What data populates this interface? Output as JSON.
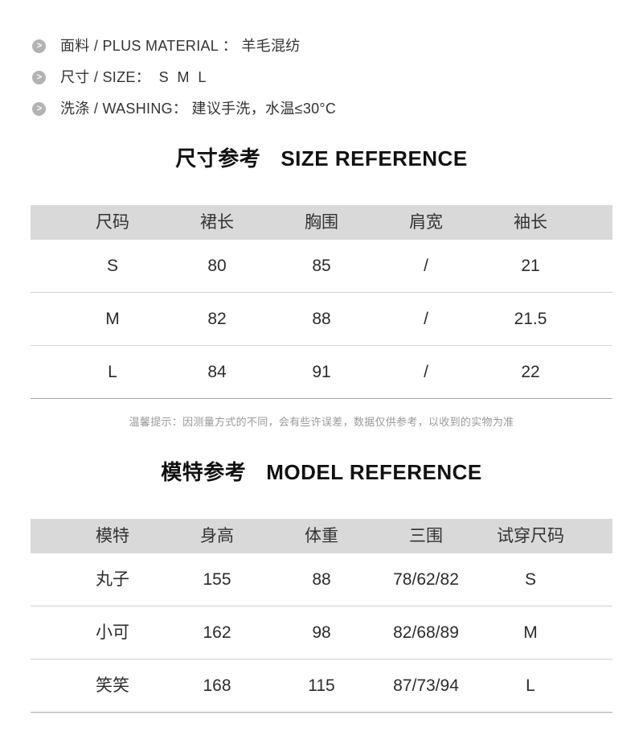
{
  "colors": {
    "page_bg": "#ffffff",
    "table_header_bg": "#d9d9d9",
    "row_divider": "#d2d2d2",
    "table_bottom_line": "#a8a8a8",
    "bullet_icon_bg": "#b3b3b3",
    "note_text": "#999999",
    "heading_text": "#111111",
    "body_text": "#333333"
  },
  "bullets": [
    {
      "icon": "chevron-right-icon",
      "label": "面料 / PLUS MATERIAL ： 羊毛混纺"
    },
    {
      "icon": "chevron-right-icon",
      "label": "尺寸 / SIZE：  S  M  L"
    },
    {
      "icon": "chevron-right-icon",
      "label": "洗涤 / WASHING： 建议手洗，水温≤30°C"
    }
  ],
  "size_section": {
    "title_cn": "尺寸参考",
    "title_en": "SIZE REFERENCE",
    "table": {
      "headers": [
        "尺码",
        "裙长",
        "胸围",
        "肩宽",
        "袖长"
      ],
      "rows": [
        [
          "S",
          "80",
          "85",
          "/",
          "21"
        ],
        [
          "M",
          "82",
          "88",
          "/",
          "21.5"
        ],
        [
          "L",
          "84",
          "91",
          "/",
          "22"
        ]
      ]
    },
    "note": "温馨提示：因测量方式的不同，会有些许误差，数据仅供参考，以收到的实物为准"
  },
  "model_section": {
    "title_cn": "模特参考",
    "title_en": "MODEL REFERENCE",
    "table": {
      "headers": [
        "模特",
        "身高",
        "体重",
        "三围",
        "试穿尺码"
      ],
      "rows": [
        [
          "丸子",
          "155",
          "88",
          "78/62/82",
          "S"
        ],
        [
          "小可",
          "162",
          "98",
          "82/68/89",
          "M"
        ],
        [
          "笑笑",
          "168",
          "115",
          "87/73/94",
          "L"
        ]
      ]
    }
  }
}
